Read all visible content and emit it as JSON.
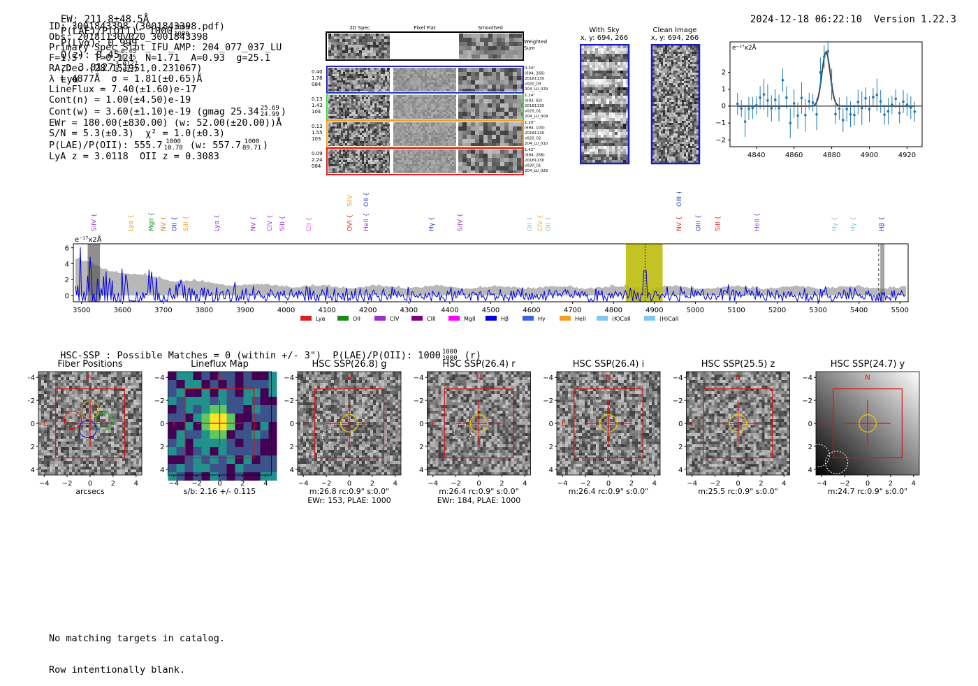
{
  "header": {
    "ew": "EW: 211.8±48.5Å",
    "plae_label": "P(LAE)/P(OII): 1000",
    "plae_hi": "1000",
    "plae_lo": "1000",
    "plya": "P(Lyα): 0.999",
    "qz_label": "Q(z): 0.45",
    "qz_hi": "0.45",
    "qz_lo": "0.45",
    "z_label": "z: 3.0127",
    "z_hi": "3.0127",
    "z_lo": "3.0127",
    "z_line": "Lyα",
    "timestamp": "2024-12-18 06:22:10",
    "version": "Version 1.22.3"
  },
  "info": {
    "id": "ID: 3001843398 (3001843398.pdf)",
    "obs": "Obs: 20181130v020_3001843398",
    "primary": "Primary Spec_Slot_IFU_AMP: 204_077_037_LU",
    "params": "F=1.5\"  T=0.121  N=1.71  A=0.93  g=25.1",
    "radec": "RA,Dec (28.151951,0.231067)",
    "lambda": "λ = 4877Å  σ = 1.81(±0.65)Å",
    "lineflux": "LineFlux = 7.40(±1.60)e-17",
    "contn": "Cont(n) = 1.00(±4.50)e-19",
    "contw": "Cont(w) = 3.60(±1.10)e-19 (gmag 25.34",
    "contw_hi": "25.69",
    "contw_lo": "24.99",
    "contw_end": ")",
    "ewr": "EWr = 180.00(±830.00) (w: 52.00(±20.00))Å",
    "sn": "S/N = 5.3(±0.3)  χ² = 1.0(±0.3)",
    "plae": "P(LAE)/P(OII): 555.7",
    "plae_hi": "1000",
    "plae_lo": "10.78",
    "plae_w": "(w: 557.7",
    "plae_w_hi": "1000",
    "plae_w_lo": "89.71",
    "plae_end": ")",
    "zvals": "LyA z = 3.0118  OII z = 0.3083"
  },
  "spec2d": {
    "col_titles": [
      "2D Spec",
      "Pixel Flat",
      "Smoothed"
    ],
    "weighted": "Weighted\nSum",
    "rows": [
      {
        "color": "#2020c0",
        "left": "0.40\n1.78\n084",
        "right": "0.34\"\n(694, 266)\n20181130\nv020_03\n204_LU_029"
      },
      {
        "color": "#40d040",
        "left": "0.13\n1.43\n104",
        "right": "1.24\"\n(693, 92)\n20181130\nv020_01\n204_LU_009"
      },
      {
        "color": "#f0a020",
        "left": "0.13\n1.55\n103",
        "right": "1.20\"\n(694, 100)\n20181130\nv020_02\n204_LU_010"
      },
      {
        "color": "#e02020",
        "left": "0.09\n2.24\n084",
        "right": "1.42\"\n(694, 266)\n20181130\nv020_01\n204_LU_029"
      }
    ]
  },
  "sky": {
    "with_sky": "With Sky",
    "with_sky_xy": "x, y: 694, 266",
    "clean": "Clean Image",
    "clean_xy": "x, y: 694, 266"
  },
  "zoom_chart": {
    "unit": "e⁻¹⁷x2Å",
    "xticks": [
      "4840",
      "4860",
      "4880",
      "4900",
      "4920"
    ],
    "yticks": [
      "2",
      "1",
      "0",
      "−1",
      "−2"
    ]
  },
  "line_labels": [
    {
      "name": "SiIV",
      "w": 3530,
      "color": "#9b30d0",
      "row": 1
    },
    {
      "name": "Lyα",
      "w": 3620,
      "color": "#f0a020",
      "row": 1
    },
    {
      "name": "MgII",
      "w": 3670,
      "color": "#1a8a1a",
      "row": 1
    },
    {
      "name": "NV",
      "w": 3700,
      "color": "#e08020",
      "row": 1
    },
    {
      "name": "OII",
      "w": 3727,
      "color": "#2040d0",
      "row": 1
    },
    {
      "name": "SiII",
      "w": 3755,
      "color": "#f0a020",
      "row": 1
    },
    {
      "name": "Lyα",
      "w": 3830,
      "color": "#9b30d0",
      "row": 1
    },
    {
      "name": "NV",
      "w": 3920,
      "color": "#9b30d0",
      "row": 1
    },
    {
      "name": "CIV",
      "w": 3960,
      "color": "#9b30d0",
      "row": 1
    },
    {
      "name": "SiII",
      "w": 3990,
      "color": "#9b30d0",
      "row": 1
    },
    {
      "name": "CII",
      "w": 4055,
      "color": "#e040e0",
      "row": 1
    },
    {
      "name": "SiIV",
      "w": 4155,
      "color": "#f0a020",
      "row": 0
    },
    {
      "name": "OII",
      "w": 4195,
      "color": "#2040d0",
      "row": 0
    },
    {
      "name": "OVI",
      "w": 4155,
      "color": "#e02020",
      "row": 1
    },
    {
      "name": "HeII",
      "w": 4195,
      "color": "#9b30d0",
      "row": 1
    },
    {
      "name": "Hγ",
      "w": 4355,
      "color": "#2040d0",
      "row": 1
    },
    {
      "name": "SiIV",
      "w": 4425,
      "color": "#9b30d0",
      "row": 1
    },
    {
      "name": "OII",
      "w": 4595,
      "color": "#80c0e0",
      "row": 1
    },
    {
      "name": "CIV",
      "w": 4620,
      "color": "#f0a020",
      "row": 1
    },
    {
      "name": "OII",
      "w": 4640,
      "color": "#80c0e0",
      "row": 1
    },
    {
      "name": "OIII",
      "w": 4960,
      "color": "#2040d0",
      "row": 0
    },
    {
      "name": "NV",
      "w": 4960,
      "color": "#e02020",
      "row": 1
    },
    {
      "name": "OIII",
      "w": 5007,
      "color": "#2040d0",
      "row": 1
    },
    {
      "name": "SiII",
      "w": 5055,
      "color": "#e02020",
      "row": 1
    },
    {
      "name": "HeII",
      "w": 5150,
      "color": "#9b30d0",
      "row": 1
    },
    {
      "name": "Hγ",
      "w": 5340,
      "color": "#80c0e0",
      "row": 1
    },
    {
      "name": "Hγ",
      "w": 5385,
      "color": "#80c0e0",
      "row": 1
    },
    {
      "name": "Hβ",
      "w": 5455,
      "color": "#2040d0",
      "row": 1
    }
  ],
  "chart_data": {
    "type": "line",
    "ylabel": "e⁻¹⁷x2Å",
    "xlim": [
      3480,
      5520
    ],
    "ylim": [
      -0.8,
      6.5
    ],
    "xticks": [
      3500,
      3600,
      3700,
      3800,
      3900,
      4000,
      4100,
      4200,
      4300,
      4400,
      4500,
      4600,
      4700,
      4800,
      4900,
      5000,
      5100,
      5200,
      5300,
      5400,
      5500
    ],
    "yticks": [
      0,
      2,
      4,
      6
    ],
    "highlight_band": [
      4830,
      4920
    ],
    "series": [
      {
        "color": "#0000e0",
        "noise_amplitude": 1.0,
        "peak_at": 4877,
        "peak_value": 3.2
      }
    ],
    "legend": [
      {
        "label": "Lyα",
        "color": "#e02020"
      },
      {
        "label": "OII",
        "color": "#1a8a1a"
      },
      {
        "label": "CIV",
        "color": "#9b30d0"
      },
      {
        "label": "CIII",
        "color": "#800080"
      },
      {
        "label": "MgII",
        "color": "#ff00ff"
      },
      {
        "label": "Hβ",
        "color": "#0000e0"
      },
      {
        "label": "Hγ",
        "color": "#4060e0"
      },
      {
        "label": "HeII",
        "color": "#f0a020"
      },
      {
        "label": "(K)CaII",
        "color": "#80c8f0"
      },
      {
        "label": "(H)CaII",
        "color": "#80c8f0"
      }
    ]
  },
  "hsc": {
    "summary": "HSC-SSP : Possible Matches = 0 (within +/- 3\")  P(LAE)/P(OII): 1000",
    "summary_hi": "1000",
    "summary_lo": "1000",
    "summary_end": "(r)",
    "panels": [
      {
        "title": "Fiber Positions",
        "cap1": "arcsecs",
        "cap2": ""
      },
      {
        "title": "Lineflux Map",
        "cap1": "s/b: 2.16 +/- 0.115",
        "cap2": ""
      },
      {
        "title": "HSC SSP(26.8) g",
        "cap1": "m:26.8 rc:0.9\"  s:0.0\"",
        "cap2": "EWr: 153, PLAE: 1000"
      },
      {
        "title": "HSC SSP(26.4) r",
        "cap1": "m:26.4 rc:0.9\"  s:0.0\"",
        "cap2": "EWr: 184, PLAE: 1000"
      },
      {
        "title": "HSC SSP(26.4) i",
        "cap1": "m:26.4 rc:0.9\"  s:0.0\"",
        "cap2": ""
      },
      {
        "title": "HSC SSP(25.5) z",
        "cap1": "m:25.5 rc:0.9\"  s:0.0\"",
        "cap2": ""
      },
      {
        "title": "HSC SSP(24.7) y",
        "cap1": "m:24.7 rc:0.9\"  s:0.0\"",
        "cap2": ""
      }
    ],
    "xticks": [
      "−4",
      "−2",
      "0",
      "2",
      "4"
    ],
    "yticks": [
      "4",
      "2",
      "0",
      "−2",
      "−4"
    ],
    "n_label": "N",
    "e_label": "E"
  },
  "footer": {
    "line1": "No matching targets in catalog.",
    "line2": "Row intentionally blank."
  }
}
